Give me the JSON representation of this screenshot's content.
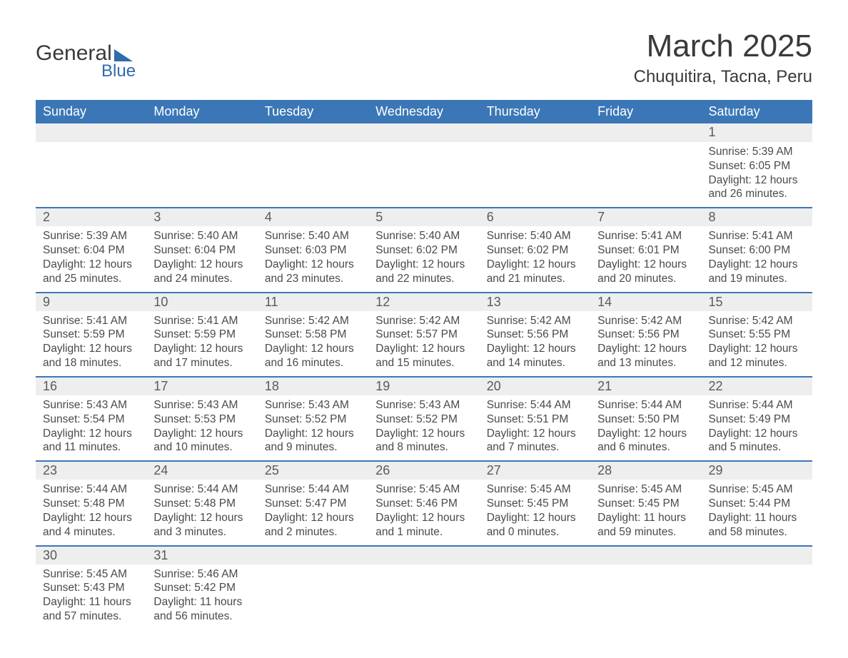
{
  "logo": {
    "text_main": "General",
    "text_sub": "Blue"
  },
  "title": "March 2025",
  "location": "Chuquitira, Tacna, Peru",
  "weekday_labels": [
    "Sunday",
    "Monday",
    "Tuesday",
    "Wednesday",
    "Thursday",
    "Friday",
    "Saturday"
  ],
  "colors": {
    "header_bg": "#3b77b6",
    "header_text": "#ffffff",
    "daynum_bg": "#eeeeee",
    "row_divider": "#3b77b6",
    "body_text": "#4a4a4a",
    "title_text": "#3a3a3a",
    "logo_accent": "#2f6bad",
    "page_bg": "#ffffff"
  },
  "typography": {
    "title_fontsize_pt": 33,
    "location_fontsize_pt": 18,
    "weekday_fontsize_pt": 14,
    "daynum_fontsize_pt": 14,
    "cell_fontsize_pt": 12
  },
  "labels": {
    "sunrise": "Sunrise:",
    "sunset": "Sunset:",
    "daylight": "Daylight:"
  },
  "weeks": [
    [
      null,
      null,
      null,
      null,
      null,
      null,
      {
        "day": "1",
        "sunrise": "5:39 AM",
        "sunset": "6:05 PM",
        "daylight": "12 hours and 26 minutes."
      }
    ],
    [
      {
        "day": "2",
        "sunrise": "5:39 AM",
        "sunset": "6:04 PM",
        "daylight": "12 hours and 25 minutes."
      },
      {
        "day": "3",
        "sunrise": "5:40 AM",
        "sunset": "6:04 PM",
        "daylight": "12 hours and 24 minutes."
      },
      {
        "day": "4",
        "sunrise": "5:40 AM",
        "sunset": "6:03 PM",
        "daylight": "12 hours and 23 minutes."
      },
      {
        "day": "5",
        "sunrise": "5:40 AM",
        "sunset": "6:02 PM",
        "daylight": "12 hours and 22 minutes."
      },
      {
        "day": "6",
        "sunrise": "5:40 AM",
        "sunset": "6:02 PM",
        "daylight": "12 hours and 21 minutes."
      },
      {
        "day": "7",
        "sunrise": "5:41 AM",
        "sunset": "6:01 PM",
        "daylight": "12 hours and 20 minutes."
      },
      {
        "day": "8",
        "sunrise": "5:41 AM",
        "sunset": "6:00 PM",
        "daylight": "12 hours and 19 minutes."
      }
    ],
    [
      {
        "day": "9",
        "sunrise": "5:41 AM",
        "sunset": "5:59 PM",
        "daylight": "12 hours and 18 minutes."
      },
      {
        "day": "10",
        "sunrise": "5:41 AM",
        "sunset": "5:59 PM",
        "daylight": "12 hours and 17 minutes."
      },
      {
        "day": "11",
        "sunrise": "5:42 AM",
        "sunset": "5:58 PM",
        "daylight": "12 hours and 16 minutes."
      },
      {
        "day": "12",
        "sunrise": "5:42 AM",
        "sunset": "5:57 PM",
        "daylight": "12 hours and 15 minutes."
      },
      {
        "day": "13",
        "sunrise": "5:42 AM",
        "sunset": "5:56 PM",
        "daylight": "12 hours and 14 minutes."
      },
      {
        "day": "14",
        "sunrise": "5:42 AM",
        "sunset": "5:56 PM",
        "daylight": "12 hours and 13 minutes."
      },
      {
        "day": "15",
        "sunrise": "5:42 AM",
        "sunset": "5:55 PM",
        "daylight": "12 hours and 12 minutes."
      }
    ],
    [
      {
        "day": "16",
        "sunrise": "5:43 AM",
        "sunset": "5:54 PM",
        "daylight": "12 hours and 11 minutes."
      },
      {
        "day": "17",
        "sunrise": "5:43 AM",
        "sunset": "5:53 PM",
        "daylight": "12 hours and 10 minutes."
      },
      {
        "day": "18",
        "sunrise": "5:43 AM",
        "sunset": "5:52 PM",
        "daylight": "12 hours and 9 minutes."
      },
      {
        "day": "19",
        "sunrise": "5:43 AM",
        "sunset": "5:52 PM",
        "daylight": "12 hours and 8 minutes."
      },
      {
        "day": "20",
        "sunrise": "5:44 AM",
        "sunset": "5:51 PM",
        "daylight": "12 hours and 7 minutes."
      },
      {
        "day": "21",
        "sunrise": "5:44 AM",
        "sunset": "5:50 PM",
        "daylight": "12 hours and 6 minutes."
      },
      {
        "day": "22",
        "sunrise": "5:44 AM",
        "sunset": "5:49 PM",
        "daylight": "12 hours and 5 minutes."
      }
    ],
    [
      {
        "day": "23",
        "sunrise": "5:44 AM",
        "sunset": "5:48 PM",
        "daylight": "12 hours and 4 minutes."
      },
      {
        "day": "24",
        "sunrise": "5:44 AM",
        "sunset": "5:48 PM",
        "daylight": "12 hours and 3 minutes."
      },
      {
        "day": "25",
        "sunrise": "5:44 AM",
        "sunset": "5:47 PM",
        "daylight": "12 hours and 2 minutes."
      },
      {
        "day": "26",
        "sunrise": "5:45 AM",
        "sunset": "5:46 PM",
        "daylight": "12 hours and 1 minute."
      },
      {
        "day": "27",
        "sunrise": "5:45 AM",
        "sunset": "5:45 PM",
        "daylight": "12 hours and 0 minutes."
      },
      {
        "day": "28",
        "sunrise": "5:45 AM",
        "sunset": "5:45 PM",
        "daylight": "11 hours and 59 minutes."
      },
      {
        "day": "29",
        "sunrise": "5:45 AM",
        "sunset": "5:44 PM",
        "daylight": "11 hours and 58 minutes."
      }
    ],
    [
      {
        "day": "30",
        "sunrise": "5:45 AM",
        "sunset": "5:43 PM",
        "daylight": "11 hours and 57 minutes."
      },
      {
        "day": "31",
        "sunrise": "5:46 AM",
        "sunset": "5:42 PM",
        "daylight": "11 hours and 56 minutes."
      },
      null,
      null,
      null,
      null,
      null
    ]
  ]
}
